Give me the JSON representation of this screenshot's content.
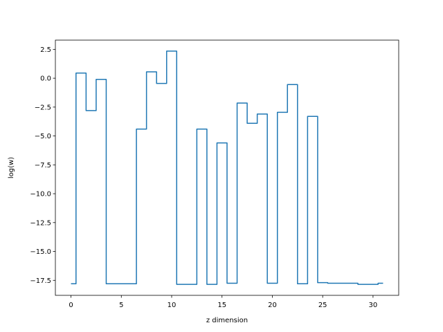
{
  "chart_data": {
    "type": "line",
    "drawstyle": "steps-mid",
    "title": "",
    "xlabel": "z dimension",
    "ylabel": "log(w)",
    "xlim": [
      -1.55,
      32.55
    ],
    "ylim": [
      -18.8,
      3.3
    ],
    "grid": false,
    "line_color": "#1f77b4",
    "x_ticks": [
      0,
      5,
      10,
      15,
      20,
      25,
      30
    ],
    "x_tick_labels": [
      "0",
      "5",
      "10",
      "15",
      "20",
      "25",
      "30"
    ],
    "y_ticks": [
      2.5,
      0.0,
      -2.5,
      -5.0,
      -7.5,
      -10.0,
      -12.5,
      -15.0,
      -17.5
    ],
    "y_tick_labels": [
      "2.5",
      "0.0",
      "−2.5",
      "−5.0",
      "−7.5",
      "−10.0",
      "−12.5",
      "−15.0",
      "−17.5"
    ],
    "series": [
      {
        "x": [
          0,
          1,
          2,
          3,
          4,
          5,
          6,
          7,
          8,
          9,
          10,
          11,
          12,
          13,
          14,
          15,
          16,
          17,
          18,
          19,
          20,
          21,
          22,
          23,
          24,
          25,
          26,
          27,
          28,
          29,
          30,
          31
        ],
        "values": [
          -17.8,
          0.45,
          -2.8,
          -0.1,
          -17.8,
          -17.8,
          -17.8,
          -4.4,
          0.55,
          -0.45,
          2.35,
          -17.85,
          -17.85,
          -4.4,
          -17.85,
          -5.6,
          -17.75,
          -2.15,
          -3.9,
          -3.1,
          -17.75,
          -2.95,
          -0.55,
          -17.8,
          -3.3,
          -17.7,
          -17.75,
          -17.75,
          -17.75,
          -17.85,
          -17.85,
          -17.75
        ]
      }
    ]
  }
}
